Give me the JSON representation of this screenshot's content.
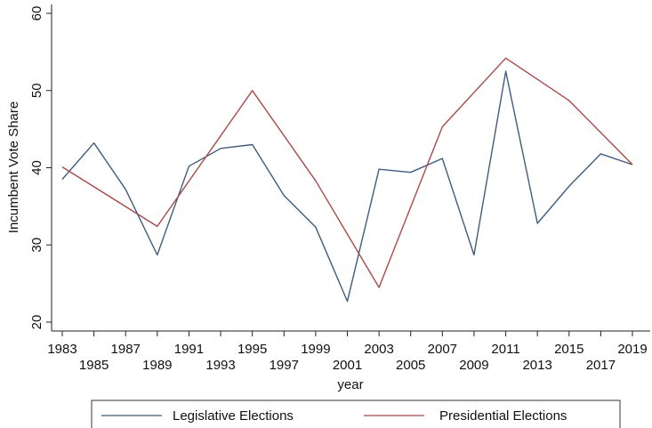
{
  "chart_data": {
    "type": "line",
    "xlabel": "year",
    "ylabel": "Incumbent Vote Share",
    "xlim": [
      1983,
      2019
    ],
    "ylim": [
      20,
      60
    ],
    "yticks": [
      20,
      30,
      40,
      50,
      60
    ],
    "xticks": [
      "1983",
      "1985",
      "1987",
      "1989",
      "1991",
      "1993",
      "1995",
      "1997",
      "1999",
      "2001",
      "2003",
      "2005",
      "2007",
      "2009",
      "2011",
      "2013",
      "2015",
      "2017",
      "2019"
    ],
    "legend_position": "bottom",
    "series": [
      {
        "name": "Legislative Elections",
        "color": "#3e5d7e",
        "x": [
          1983,
          1985,
          1987,
          1989,
          1991,
          1993,
          1995,
          1997,
          1999,
          2001,
          2003,
          2005,
          2007,
          2009,
          2011,
          2013,
          2015,
          2017,
          2019
        ],
        "y": [
          38.5,
          43.2,
          37.2,
          28.7,
          40.2,
          42.5,
          43.0,
          36.4,
          32.3,
          22.7,
          39.8,
          39.4,
          41.2,
          28.7,
          52.5,
          32.8,
          37.6,
          41.8,
          40.4
        ]
      },
      {
        "name": "Presidential Elections",
        "color": "#a84a4a",
        "x": [
          1983,
          1989,
          1995,
          1999,
          2003,
          2007,
          2011,
          2015,
          2019
        ],
        "y": [
          40.1,
          32.4,
          50.0,
          38.3,
          24.5,
          45.3,
          54.2,
          48.7,
          40.4
        ]
      }
    ]
  }
}
